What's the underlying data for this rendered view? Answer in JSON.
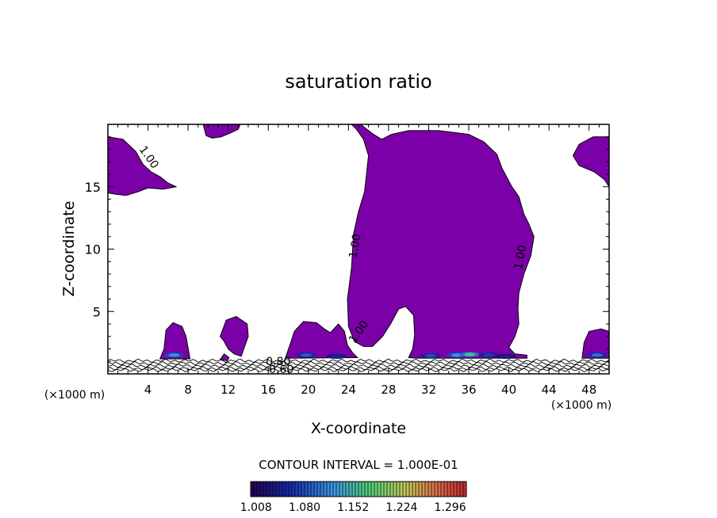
{
  "chart_data": {
    "type": "contour",
    "title": "saturation ratio",
    "xlabel": "X-coordinate",
    "ylabel": "Z-coordinate",
    "x_units": "(×1000 m)",
    "x_units_right": "(×1000 m)",
    "xlim": [
      0,
      50
    ],
    "ylim": [
      0,
      20
    ],
    "x_ticks": [
      4,
      8,
      12,
      16,
      20,
      24,
      28,
      32,
      36,
      40,
      44,
      48
    ],
    "y_ticks": [
      5,
      10,
      15
    ],
    "contour_interval_text": "CONTOUR INTERVAL = 1.000E-01",
    "colorbar": {
      "min": 1.0,
      "max": 1.32,
      "tick_labels": [
        "1.008",
        "1.080",
        "1.152",
        "1.224",
        "1.296"
      ]
    },
    "contour_labels": [
      {
        "text": "1.00",
        "x": 3.8,
        "y": 17.2,
        "angle": 55
      },
      {
        "text": "1.00",
        "x": 25.0,
        "y": 10.2,
        "angle": -80
      },
      {
        "text": "1.00",
        "x": 41.5,
        "y": 9.3,
        "angle": -80
      },
      {
        "text": "1.00",
        "x": 25.3,
        "y": 3.2,
        "angle": -55
      },
      {
        "text": "0.80",
        "x": 17.0,
        "y": 0.7,
        "angle": 0
      },
      {
        "text": "0.60",
        "x": 17.3,
        "y": 0.05,
        "angle": 0
      }
    ],
    "supersaturated_regions": [
      {
        "name": "upper-left",
        "polygon": [
          [
            0,
            19.0
          ],
          [
            1.5,
            18.8
          ],
          [
            2.8,
            17.8
          ],
          [
            3.5,
            16.8
          ],
          [
            4.3,
            16.2
          ],
          [
            5.2,
            15.8
          ],
          [
            6.0,
            15.3
          ],
          [
            6.8,
            15.0
          ],
          [
            5.5,
            14.8
          ],
          [
            4.0,
            14.9
          ],
          [
            3.0,
            14.6
          ],
          [
            1.8,
            14.3
          ],
          [
            0.8,
            14.4
          ],
          [
            0,
            14.5
          ]
        ]
      },
      {
        "name": "top-cap",
        "polygon": [
          [
            9.5,
            20
          ],
          [
            13.2,
            20
          ],
          [
            13.0,
            19.6
          ],
          [
            12.2,
            19.3
          ],
          [
            11.3,
            19.0
          ],
          [
            10.4,
            18.9
          ],
          [
            9.8,
            19.1
          ]
        ]
      },
      {
        "name": "main-tower",
        "polygon": [
          [
            25.2,
            20
          ],
          [
            26.5,
            19.2
          ],
          [
            27.3,
            18.8
          ],
          [
            28.3,
            19.2
          ],
          [
            30.0,
            19.5
          ],
          [
            33.0,
            19.5
          ],
          [
            36.0,
            19.2
          ],
          [
            37.5,
            18.6
          ],
          [
            38.8,
            17.6
          ],
          [
            39.3,
            16.5
          ],
          [
            40.3,
            15.0
          ],
          [
            41.0,
            14.2
          ],
          [
            41.5,
            12.8
          ],
          [
            42.0,
            12.0
          ],
          [
            42.5,
            11.0
          ],
          [
            42.2,
            9.5
          ],
          [
            41.5,
            8.0
          ],
          [
            41.0,
            6.5
          ],
          [
            40.9,
            5.2
          ],
          [
            41.0,
            4.0
          ],
          [
            40.6,
            3.0
          ],
          [
            40.0,
            2.1
          ],
          [
            40.6,
            1.6
          ],
          [
            41.8,
            1.5
          ],
          [
            41.8,
            1.25
          ],
          [
            39.0,
            1.25
          ],
          [
            35.0,
            1.25
          ],
          [
            31.0,
            1.25
          ],
          [
            30.0,
            1.3
          ],
          [
            30.4,
            2.0
          ],
          [
            30.6,
            3.1
          ],
          [
            30.5,
            4.7
          ],
          [
            29.7,
            5.4
          ],
          [
            29.0,
            5.2
          ],
          [
            28.2,
            4.0
          ],
          [
            27.4,
            3.0
          ],
          [
            26.4,
            2.2
          ],
          [
            25.5,
            2.2
          ],
          [
            24.6,
            2.6
          ],
          [
            24.0,
            3.8
          ],
          [
            23.9,
            6.0
          ],
          [
            24.3,
            8.5
          ],
          [
            24.5,
            11.2
          ],
          [
            25.0,
            13.0
          ],
          [
            25.6,
            14.6
          ],
          [
            25.8,
            16.0
          ],
          [
            26.0,
            17.5
          ],
          [
            25.5,
            18.8
          ],
          [
            24.8,
            19.6
          ],
          [
            24.3,
            20
          ]
        ]
      },
      {
        "name": "left-turret",
        "polygon": [
          [
            5.2,
            1.2
          ],
          [
            5.6,
            2.0
          ],
          [
            5.8,
            3.5
          ],
          [
            6.5,
            4.1
          ],
          [
            7.4,
            3.8
          ],
          [
            7.8,
            3.0
          ],
          [
            8.0,
            2.1
          ],
          [
            8.2,
            1.2
          ]
        ]
      },
      {
        "name": "floating-cloud",
        "polygon": [
          [
            11.2,
            3.0
          ],
          [
            11.8,
            4.3
          ],
          [
            12.8,
            4.6
          ],
          [
            13.9,
            4.0
          ],
          [
            14.0,
            3.0
          ],
          [
            13.6,
            2.1
          ],
          [
            13.3,
            1.4
          ],
          [
            12.6,
            1.6
          ],
          [
            12.0,
            2.0
          ],
          [
            11.6,
            2.6
          ]
        ]
      },
      {
        "name": "center-left-mound",
        "polygon": [
          [
            17.7,
            1.25
          ],
          [
            18.2,
            2.4
          ],
          [
            18.6,
            3.4
          ],
          [
            19.5,
            4.2
          ],
          [
            20.8,
            4.1
          ],
          [
            21.6,
            3.6
          ],
          [
            22.2,
            3.3
          ],
          [
            23.0,
            4.0
          ],
          [
            23.6,
            3.4
          ],
          [
            23.9,
            2.3
          ],
          [
            24.4,
            1.7
          ],
          [
            24.9,
            1.3
          ]
        ]
      },
      {
        "name": "right-edge-upper",
        "polygon": [
          [
            50,
            19.0
          ],
          [
            48.4,
            19.0
          ],
          [
            47.0,
            18.4
          ],
          [
            46.4,
            17.5
          ],
          [
            47.0,
            16.7
          ],
          [
            48.5,
            16.2
          ],
          [
            49.5,
            15.6
          ],
          [
            50,
            15.0
          ]
        ]
      },
      {
        "name": "right-edge-lower",
        "polygon": [
          [
            47.3,
            1.25
          ],
          [
            47.5,
            2.5
          ],
          [
            48.0,
            3.4
          ],
          [
            49.2,
            3.6
          ],
          [
            50,
            3.4
          ],
          [
            50,
            1.25
          ]
        ]
      },
      {
        "name": "small-blob",
        "polygon": [
          [
            11.2,
            1.15
          ],
          [
            11.6,
            1.6
          ],
          [
            12.1,
            1.3
          ],
          [
            11.9,
            1.05
          ]
        ]
      }
    ],
    "hot_spots": [
      {
        "x": 6.6,
        "y": 1.5,
        "value": 1.12
      },
      {
        "x": 19.8,
        "y": 1.5,
        "value": 1.09
      },
      {
        "x": 22.8,
        "y": 1.4,
        "value": 1.05
      },
      {
        "x": 32.2,
        "y": 1.45,
        "value": 1.08
      },
      {
        "x": 34.8,
        "y": 1.5,
        "value": 1.12
      },
      {
        "x": 36.1,
        "y": 1.55,
        "value": 1.16
      },
      {
        "x": 38.0,
        "y": 1.5,
        "value": 1.07
      },
      {
        "x": 39.7,
        "y": 1.4,
        "value": 1.04
      },
      {
        "x": 48.8,
        "y": 1.5,
        "value": 1.1
      }
    ],
    "surface_contours_y": [
      1.05,
      0.85,
      0.65,
      0.45,
      0.3
    ]
  }
}
